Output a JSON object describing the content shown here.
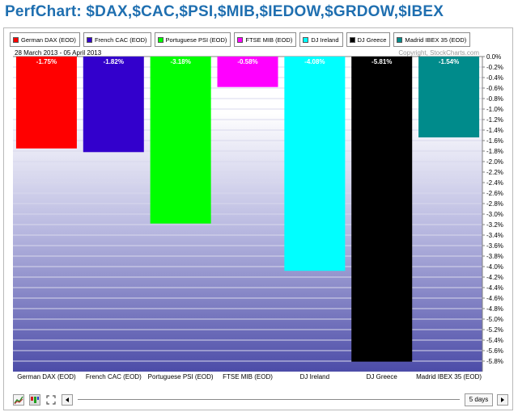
{
  "title": "PerfChart: $DAX,$CAC,$PSI,$MIB,$IEDOW,$GRDOW,$IBEX",
  "date_range": "28 March 2013 - 05 April 2013",
  "copyright": "Copyright, StockCharts.com",
  "period_label": "5 days",
  "icons": {
    "line_view": "line-chart-icon",
    "bar_view": "bar-chart-icon",
    "fullscreen": "fullscreen-icon",
    "prev": "arrow-left-icon",
    "next": "arrow-right-icon"
  },
  "chart_data": {
    "type": "bar",
    "categories": [
      "German DAX (EOD)",
      "French CAC (EOD)",
      "Portuguese PSI (EOD)",
      "FTSE MIB (EOD)",
      "DJ Ireland",
      "DJ Greece",
      "Madrid IBEX 35 (EOD)"
    ],
    "series": [
      {
        "name": "Performance",
        "values": [
          -1.75,
          -1.82,
          -3.18,
          -0.58,
          -4.08,
          -5.81,
          -1.54
        ],
        "value_labels": [
          "-1.75%",
          "-1.82%",
          "-3.18%",
          "-0.58%",
          "-4.08%",
          "-5.81%",
          "-1.54%"
        ]
      }
    ],
    "legend": [
      {
        "label": "German DAX (EOD)",
        "color": "#ff0000"
      },
      {
        "label": "French CAC (EOD)",
        "color": "#3300cc"
      },
      {
        "label": "Portuguese PSI (EOD)",
        "color": "#00ff00"
      },
      {
        "label": "FTSE MIB (EOD)",
        "color": "#ff00ff"
      },
      {
        "label": "DJ Ireland",
        "color": "#00ffff"
      },
      {
        "label": "DJ Greece",
        "color": "#000000"
      },
      {
        "label": "Madrid IBEX 35 (EOD)",
        "color": "#008b8b"
      }
    ],
    "colors": [
      "#ff0000",
      "#3300cc",
      "#00ff00",
      "#ff00ff",
      "#00ffff",
      "#000000",
      "#008b8b"
    ],
    "ylim": [
      -5.9,
      0.0
    ],
    "y_ticks": [
      "0.0%",
      "-0.2%",
      "-0.4%",
      "-0.6%",
      "-0.8%",
      "-1.0%",
      "-1.2%",
      "-1.4%",
      "-1.6%",
      "-1.8%",
      "-2.0%",
      "-2.2%",
      "-2.4%",
      "-2.6%",
      "-2.8%",
      "-3.0%",
      "-3.2%",
      "-3.4%",
      "-3.6%",
      "-3.8%",
      "-4.0%",
      "-4.2%",
      "-4.4%",
      "-4.6%",
      "-4.8%",
      "-5.0%",
      "-5.2%",
      "-5.4%",
      "-5.6%",
      "-5.8%"
    ],
    "y_tick_values": [
      0.0,
      -0.2,
      -0.4,
      -0.6,
      -0.8,
      -1.0,
      -1.2,
      -1.4,
      -1.6,
      -1.8,
      -2.0,
      -2.2,
      -2.4,
      -2.6,
      -2.8,
      -3.0,
      -3.2,
      -3.4,
      -3.6,
      -3.8,
      -4.0,
      -4.2,
      -4.4,
      -4.6,
      -4.8,
      -5.0,
      -5.2,
      -5.4,
      -5.6,
      -5.8
    ],
    "y_axis_position": "right",
    "grid": true,
    "legend_position": "top",
    "xlabel": "",
    "ylabel": ""
  }
}
